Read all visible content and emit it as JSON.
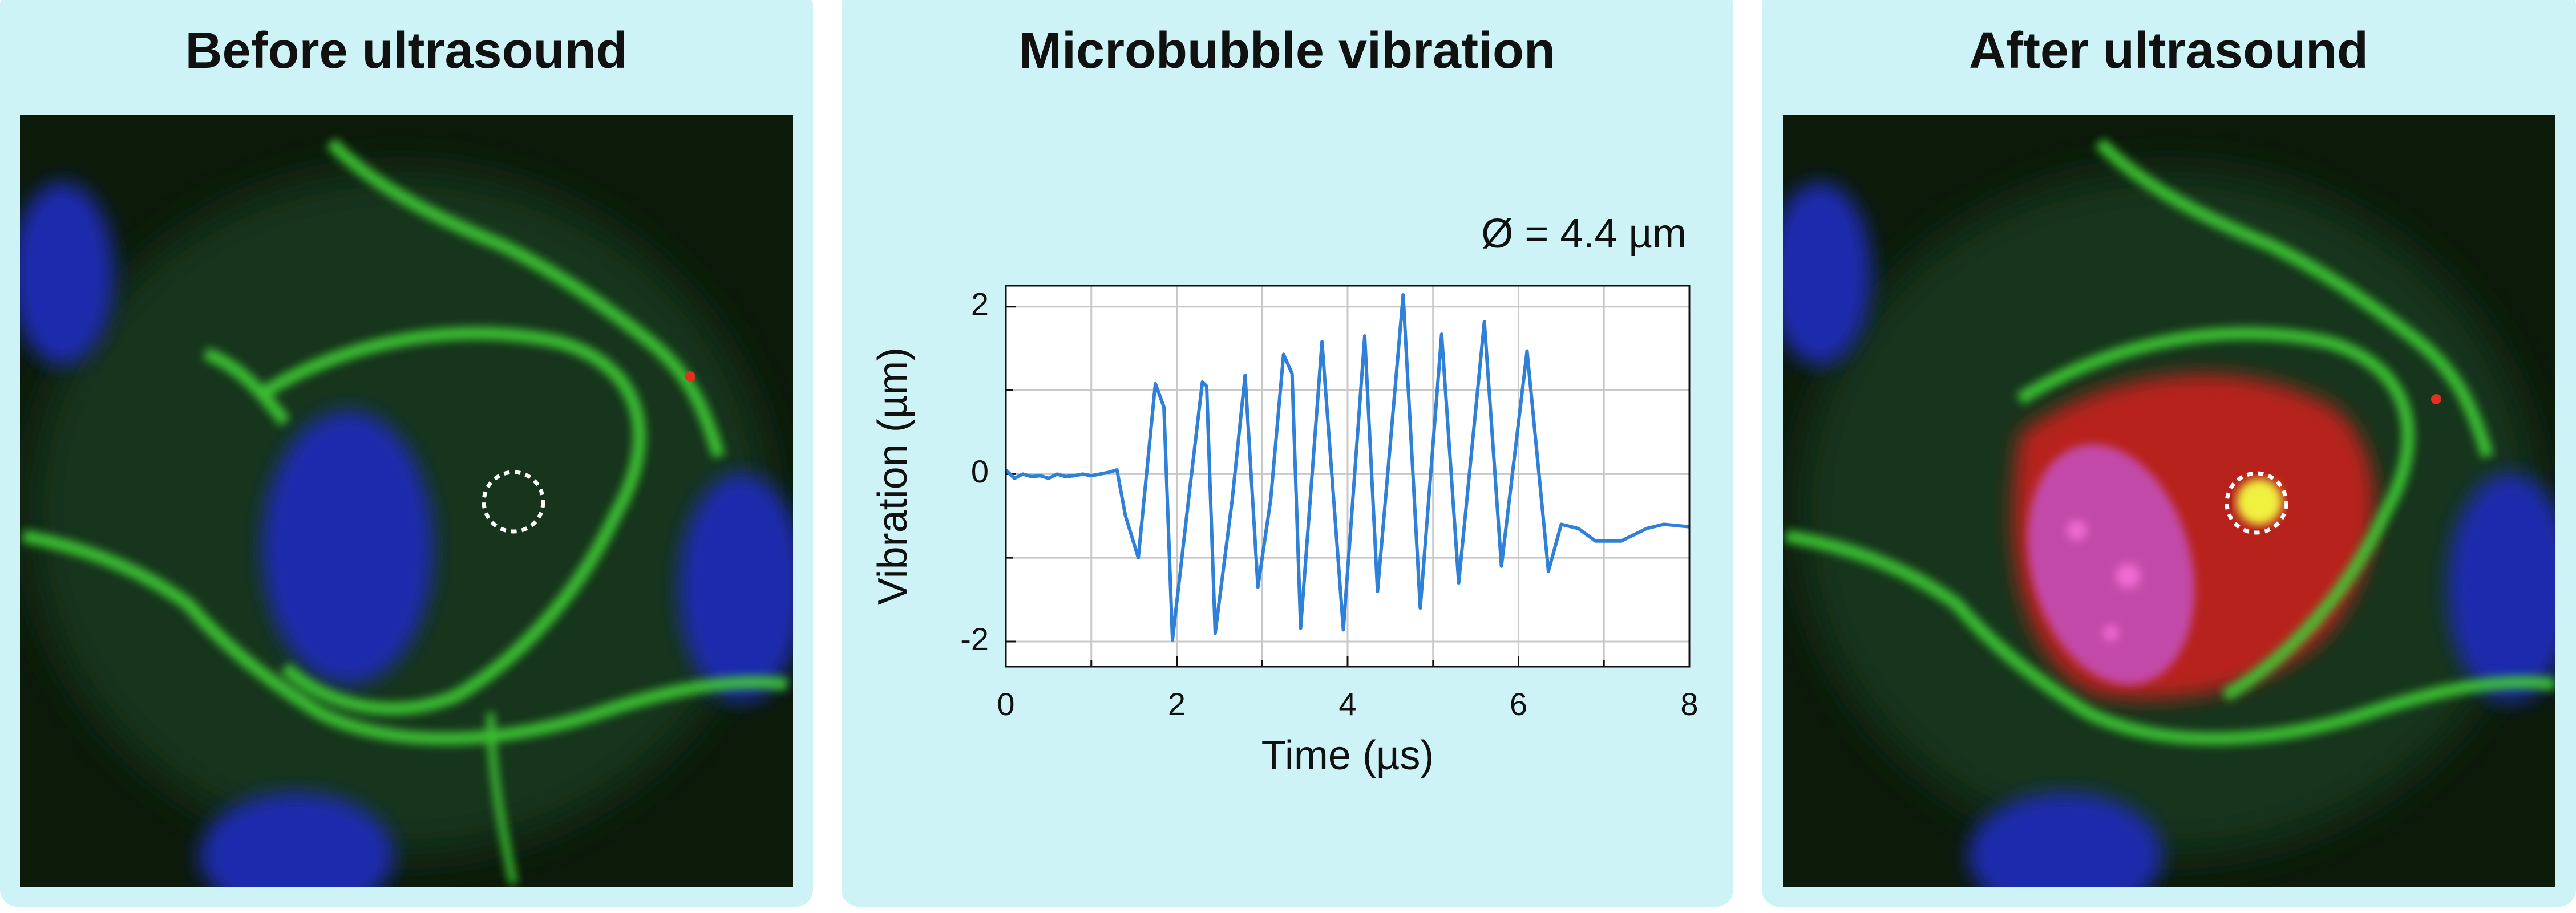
{
  "panels": [
    {
      "title": "Before ultrasound"
    },
    {
      "title": "After ultrasound"
    }
  ],
  "chart_data": {
    "type": "line",
    "title": "Microbubble vibration",
    "annotation": "Ø = 4.4 µm",
    "x_label": "Time (µs)",
    "y_label": "Vibration (µm)",
    "color": "#2f80d8",
    "x": [
      0,
      0.1,
      0.2,
      0.3,
      0.4,
      0.5,
      0.6,
      0.7,
      0.8,
      0.9,
      1.0,
      1.1,
      1.2,
      1.3,
      1.4,
      1.55,
      1.75,
      1.85,
      1.95,
      2.15,
      2.3,
      2.35,
      2.45,
      2.65,
      2.8,
      2.95,
      3.1,
      3.25,
      3.35,
      3.45,
      3.7,
      3.95,
      4.2,
      4.35,
      4.65,
      4.85,
      5.1,
      5.3,
      5.6,
      5.8,
      6.1,
      6.35,
      6.5,
      6.7,
      6.9,
      7.2,
      7.5,
      7.7,
      8.0
    ],
    "values": [
      0.05,
      -0.05,
      0.0,
      -0.03,
      -0.02,
      -0.05,
      0.0,
      -0.03,
      -0.02,
      0.0,
      -0.02,
      0.0,
      0.02,
      0.05,
      -0.5,
      -1.0,
      1.08,
      0.8,
      -1.98,
      -0.2,
      1.1,
      1.05,
      -1.9,
      -0.3,
      1.18,
      -1.35,
      -0.3,
      1.43,
      1.2,
      -1.84,
      1.58,
      -1.86,
      1.65,
      -1.4,
      2.14,
      -1.6,
      1.67,
      -1.3,
      1.82,
      -1.1,
      1.47,
      -1.16,
      -0.6,
      -0.65,
      -0.8,
      -0.8,
      -0.65,
      -0.6,
      -0.63
    ],
    "xlim": [
      0,
      8
    ],
    "ylim": [
      -2.3,
      2.25
    ],
    "xticks": [
      0,
      2,
      4,
      6,
      8
    ],
    "yticks": [
      -2,
      0,
      2
    ],
    "grid": true
  }
}
